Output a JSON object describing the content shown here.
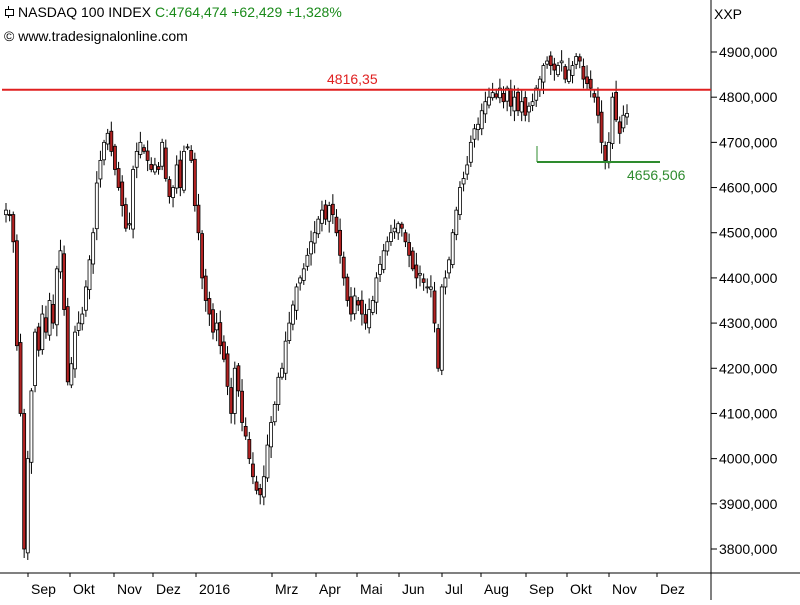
{
  "header": {
    "symbol_name": "NASDAQ 100 INDEX",
    "quote": "C:4764,474 +62,429 +1,328%",
    "source": "© www.tradesignalonline.com",
    "axis_code": "XXP",
    "icon": "candlestick-chart-icon"
  },
  "colors": {
    "up_body": "#ffffff",
    "down_body": "#b22222",
    "resistance": "#e02020",
    "support": "#2e8b2e",
    "quote_green": "#1a8a1a",
    "grid": "#000000"
  },
  "annotations": {
    "resistance_label": "4816,35",
    "support_label": "4656,506"
  },
  "chart_data": {
    "type": "candlestick",
    "title": "NASDAQ 100 INDEX",
    "ylabel": "",
    "xlabel": "",
    "ylim": [
      3760,
      4930
    ],
    "y_ticks": [
      3800,
      3900,
      4000,
      4100,
      4200,
      4300,
      4400,
      4500,
      4600,
      4700,
      4800,
      4900
    ],
    "y_tick_labels": [
      "3800,000",
      "3900,000",
      "4000,000",
      "4100,000",
      "4200,000",
      "4300,000",
      "4400,000",
      "4500,000",
      "4600,000",
      "4700,000",
      "4800,000",
      "4900,000"
    ],
    "x_tick_labels": [
      "Sep",
      "Okt",
      "Nov",
      "Dez",
      "2016",
      "Mrz",
      "Apr",
      "Mai",
      "Jun",
      "Jul",
      "Aug",
      "Sep",
      "Okt",
      "Nov",
      "Dez"
    ],
    "last_close": 4764.474,
    "horizontal_lines": [
      {
        "label": "4816,35",
        "value": 4816.35
      },
      {
        "label": "4656,506",
        "value": 4656.506
      }
    ],
    "close_path": [
      4550,
      4540,
      4480,
      4250,
      4100,
      3800,
      4000,
      4150,
      4280,
      4240,
      4320,
      4280,
      4350,
      4300,
      4420,
      4460,
      4330,
      4170,
      4210,
      4280,
      4300,
      4320,
      4380,
      4440,
      4500,
      4610,
      4660,
      4700,
      4720,
      4680,
      4640,
      4600,
      4560,
      4510,
      4520,
      4640,
      4680,
      4700,
      4680,
      4660,
      4640,
      4650,
      4640,
      4700,
      4620,
      4580,
      4600,
      4650,
      4600,
      4680,
      4690,
      4660,
      4560,
      4500,
      4400,
      4350,
      4320,
      4280,
      4300,
      4250,
      4220,
      4160,
      4100,
      4200,
      4150,
      4080,
      4050,
      4000,
      3960,
      3930,
      3920,
      3960,
      4030,
      4080,
      4120,
      4180,
      4200,
      4260,
      4300,
      4340,
      4380,
      4400,
      4420,
      4450,
      4480,
      4500,
      4530,
      4550,
      4530,
      4560,
      4540,
      4500,
      4450,
      4400,
      4350,
      4320,
      4360,
      4340,
      4320,
      4300,
      4330,
      4350,
      4400,
      4430,
      4460,
      4480,
      4500,
      4510,
      4520,
      4510,
      4480,
      4450,
      4420,
      4400,
      4410,
      4390,
      4380,
      4380,
      4300,
      4200,
      4380,
      4400,
      4440,
      4500,
      4550,
      4600,
      4620,
      4650,
      4700,
      4730,
      4740,
      4770,
      4790,
      4800,
      4810,
      4800,
      4820,
      4790,
      4820,
      4780,
      4800,
      4770,
      4790,
      4760,
      4780,
      4790,
      4820,
      4840,
      4870,
      4880,
      4870,
      4860,
      4870,
      4880,
      4840,
      4860,
      4870,
      4890,
      4880,
      4840,
      4830,
      4820,
      4800,
      4760,
      4700,
      4660,
      4700,
      4800,
      4750,
      4720,
      4760,
      4764
    ]
  }
}
